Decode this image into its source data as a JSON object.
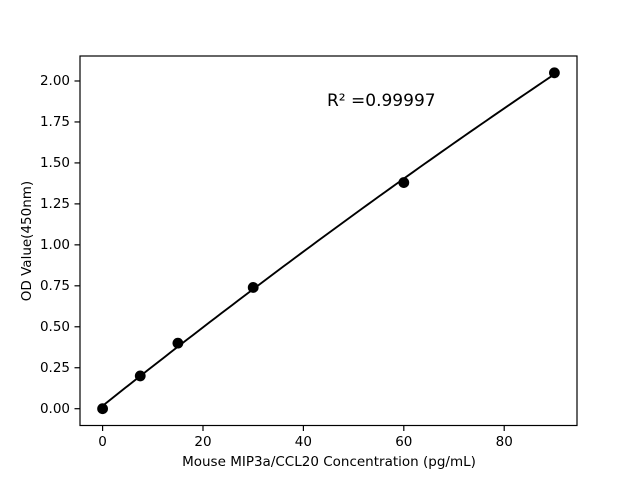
{
  "chart_data": {
    "type": "scatter",
    "title": "",
    "xlabel": "Mouse MIP3a/CCL20 Concentration (pg/mL)",
    "ylabel": "OD Value(450nm)",
    "annotation": "R² =0.99997",
    "r_squared": 0.99997,
    "points": [
      {
        "x": 0,
        "y": 0.0
      },
      {
        "x": 7.5,
        "y": 0.2
      },
      {
        "x": 15,
        "y": 0.4
      },
      {
        "x": 30,
        "y": 0.74
      },
      {
        "x": 60,
        "y": 1.38
      },
      {
        "x": 90,
        "y": 2.05
      }
    ],
    "fit_line": "quadratic-regression",
    "xlim": [
      -4.5,
      94.5
    ],
    "ylim": [
      -0.1025,
      2.1525
    ],
    "x_ticks": [
      {
        "value": 0,
        "label": "0"
      },
      {
        "value": 20,
        "label": "20"
      },
      {
        "value": 40,
        "label": "40"
      },
      {
        "value": 60,
        "label": "60"
      },
      {
        "value": 80,
        "label": "80"
      }
    ],
    "y_ticks": [
      {
        "value": 0.0,
        "label": "0.00"
      },
      {
        "value": 0.25,
        "label": "0.25"
      },
      {
        "value": 0.5,
        "label": "0.50"
      },
      {
        "value": 0.75,
        "label": "0.75"
      },
      {
        "value": 1.0,
        "label": "1.00"
      },
      {
        "value": 1.25,
        "label": "1.25"
      },
      {
        "value": 1.5,
        "label": "1.50"
      },
      {
        "value": 1.75,
        "label": "1.75"
      },
      {
        "value": 2.0,
        "label": "2.00"
      }
    ],
    "grid": false,
    "legend": null,
    "colors": {
      "background": "#ffffff",
      "spine": "#000000",
      "line": "#000000",
      "marker": "#000000",
      "text": "#000000"
    }
  }
}
